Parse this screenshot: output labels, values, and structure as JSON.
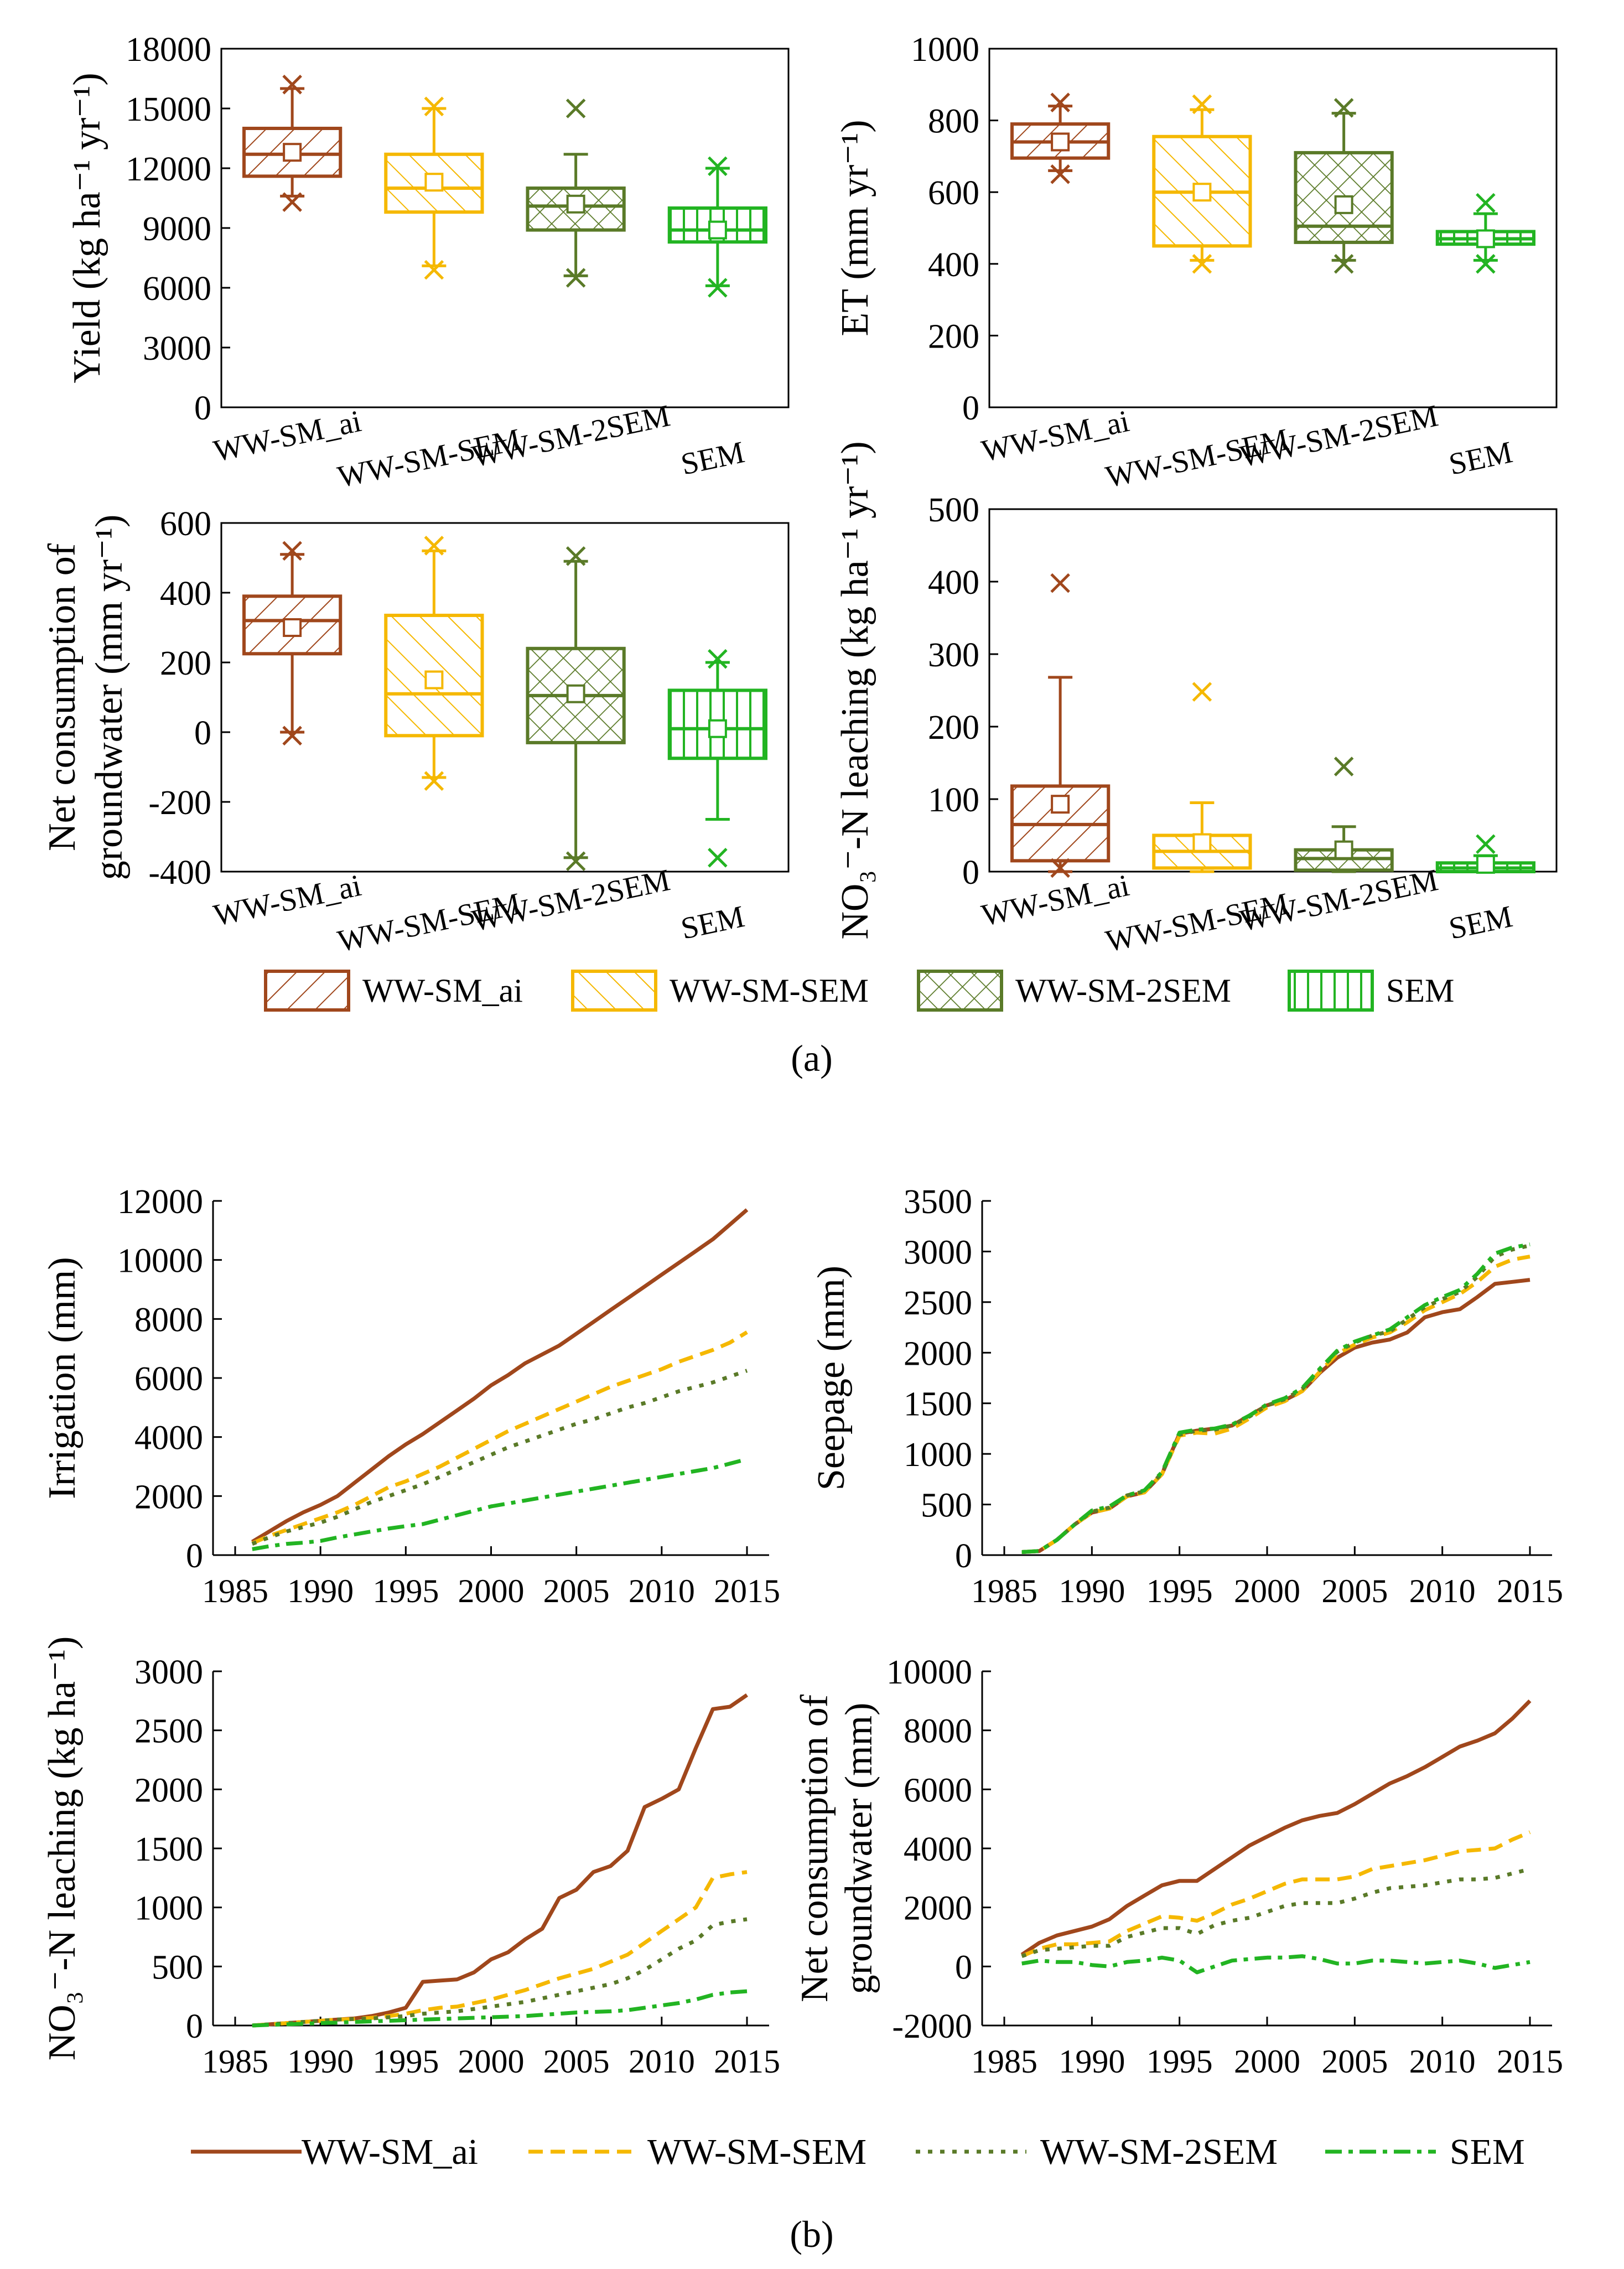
{
  "colors": {
    "ai": "#A0471C",
    "sem1": "#F5B800",
    "sem2": "#5A7A28",
    "sem": "#22B422"
  },
  "box_legend": [
    {
      "name": "WW-SM_ai",
      "color": "#A0471C",
      "pattern": "pat-fdiag"
    },
    {
      "name": "WW-SM-SEM",
      "color": "#F5B800",
      "pattern": "pat-bdiag"
    },
    {
      "name": "WW-SM-2SEM",
      "color": "#5A7A28",
      "pattern": "pat-cross"
    },
    {
      "name": "SEM",
      "color": "#22B422",
      "pattern": "pat-vert"
    }
  ],
  "line_legend": [
    {
      "name": "WW-SM_ai",
      "color": "#A0471C",
      "dash": "solid"
    },
    {
      "name": "WW-SM-SEM",
      "color": "#F5B800",
      "dash": "dashed"
    },
    {
      "name": "WW-SM-2SEM",
      "color": "#5A7A28",
      "dash": "dotted"
    },
    {
      "name": "SEM",
      "color": "#22B422",
      "dashdot": true
    }
  ],
  "panel_labels": {
    "a": "(a)",
    "b": "(b)"
  },
  "chart_data": [
    {
      "id": "yield",
      "type": "box",
      "ylabel": "Yield (kg ha⁻¹ yr⁻¹)",
      "ylim": [
        0,
        18000
      ],
      "yticks": [
        0,
        3000,
        6000,
        9000,
        12000,
        15000,
        18000
      ],
      "categories": [
        "WW-SM_ai",
        "WW-SM-SEM",
        "WW-SM-2SEM",
        "SEM"
      ],
      "boxes": [
        {
          "q1": 11600,
          "median": 12700,
          "q3": 14000,
          "mean": 12800,
          "wlow": 10600,
          "whigh": 16000,
          "outliers": [
            10300,
            16200
          ]
        },
        {
          "q1": 9800,
          "median": 11000,
          "q3": 12700,
          "mean": 11300,
          "wlow": 7100,
          "whigh": 15000,
          "outliers": [
            6900,
            15100
          ]
        },
        {
          "q1": 8900,
          "median": 10100,
          "q3": 11000,
          "mean": 10200,
          "wlow": 6600,
          "whigh": 12700,
          "outliers": [
            6500,
            15000
          ]
        },
        {
          "q1": 8300,
          "median": 8900,
          "q3": 10000,
          "mean": 8900,
          "wlow": 6100,
          "whigh": 12000,
          "outliers": [
            6000,
            12100
          ]
        }
      ]
    },
    {
      "id": "et",
      "type": "box",
      "ylabel": "ET (mm yr⁻¹)",
      "ylim": [
        0,
        1000
      ],
      "yticks": [
        0,
        200,
        400,
        600,
        800,
        1000
      ],
      "categories": [
        "WW-SM_ai",
        "WW-SM-SEM",
        "WW-SM-2SEM",
        "SEM"
      ],
      "boxes": [
        {
          "q1": 695,
          "median": 740,
          "q3": 790,
          "mean": 740,
          "wlow": 660,
          "whigh": 840,
          "outliers": [
            650,
            850
          ]
        },
        {
          "q1": 450,
          "median": 600,
          "q3": 755,
          "mean": 600,
          "wlow": 410,
          "whigh": 830,
          "outliers": [
            400,
            845
          ]
        },
        {
          "q1": 460,
          "median": 505,
          "q3": 710,
          "mean": 565,
          "wlow": 410,
          "whigh": 820,
          "outliers": [
            400,
            835
          ]
        },
        {
          "q1": 455,
          "median": 470,
          "q3": 490,
          "mean": 470,
          "wlow": 410,
          "whigh": 540,
          "outliers": [
            400,
            570
          ]
        }
      ]
    },
    {
      "id": "netgw",
      "type": "box",
      "ylabel": "Net consumption of groundwater (mm yr⁻¹)",
      "ylim": [
        -400,
        600
      ],
      "yticks": [
        -400,
        -200,
        0,
        200,
        400,
        600
      ],
      "categories": [
        "WW-SM_ai",
        "WW-SM-SEM",
        "WW-SM-2SEM",
        "SEM"
      ],
      "boxes": [
        {
          "q1": 225,
          "median": 320,
          "q3": 390,
          "mean": 300,
          "wlow": 0,
          "whigh": 510,
          "outliers": [
            -10,
            520
          ]
        },
        {
          "q1": -10,
          "median": 110,
          "q3": 335,
          "mean": 150,
          "wlow": -130,
          "whigh": 520,
          "outliers": [
            -140,
            535
          ]
        },
        {
          "q1": -30,
          "median": 105,
          "q3": 240,
          "mean": 110,
          "wlow": -360,
          "whigh": 490,
          "outliers": [
            -370,
            505
          ]
        },
        {
          "q1": -75,
          "median": 10,
          "q3": 120,
          "mean": 10,
          "wlow": -250,
          "whigh": 200,
          "outliers": [
            -360,
            210
          ]
        }
      ]
    },
    {
      "id": "no3",
      "type": "box",
      "ylabel": "NO₃⁻-N leaching (kg ha⁻¹ yr⁻¹)",
      "ylim": [
        0,
        500
      ],
      "yticks": [
        0,
        100,
        200,
        300,
        400,
        500
      ],
      "categories": [
        "WW-SM_ai",
        "WW-SM-SEM",
        "WW-SM-2SEM",
        "SEM"
      ],
      "boxes": [
        {
          "q1": 15,
          "median": 65,
          "q3": 118,
          "mean": 93,
          "wlow": 0,
          "whigh": 268,
          "outliers": [
            5,
            398
          ]
        },
        {
          "q1": 5,
          "median": 28,
          "q3": 50,
          "mean": 40,
          "wlow": 0,
          "whigh": 95,
          "outliers": [
            248
          ]
        },
        {
          "q1": 2,
          "median": 18,
          "q3": 30,
          "mean": 30,
          "wlow": 0,
          "whigh": 62,
          "outliers": [
            145
          ]
        },
        {
          "q1": 0,
          "median": 5,
          "q3": 12,
          "mean": 10,
          "wlow": 0,
          "whigh": 22,
          "outliers": [
            38
          ]
        }
      ]
    },
    {
      "id": "irr",
      "type": "line",
      "ylabel": "Irrigation (mm)",
      "xlim": [
        1985,
        2015
      ],
      "xticks": [
        1985,
        1990,
        1995,
        2000,
        2005,
        2010,
        2015
      ],
      "ylim": [
        0,
        12000
      ],
      "yticks": [
        0,
        2000,
        4000,
        6000,
        8000,
        10000,
        12000
      ],
      "x": [
        1986,
        1987,
        1988,
        1989,
        1990,
        1991,
        1992,
        1993,
        1994,
        1995,
        1996,
        1997,
        1998,
        1999,
        2000,
        2001,
        2002,
        2003,
        2004,
        2005,
        2006,
        2007,
        2008,
        2009,
        2010,
        2011,
        2012,
        2013,
        2014,
        2015
      ],
      "series": [
        {
          "name": "WW-SM_ai",
          "values": [
            450,
            800,
            1150,
            1450,
            1700,
            2000,
            2450,
            2900,
            3350,
            3750,
            4100,
            4500,
            4900,
            5300,
            5750,
            6100,
            6500,
            6800,
            7100,
            7500,
            7900,
            8300,
            8700,
            9100,
            9500,
            9900,
            10300,
            10700,
            11200,
            11700
          ]
        },
        {
          "name": "WW-SM-SEM",
          "values": [
            400,
            650,
            850,
            1050,
            1250,
            1450,
            1700,
            2000,
            2300,
            2500,
            2750,
            3000,
            3300,
            3600,
            3900,
            4200,
            4450,
            4700,
            4950,
            5200,
            5450,
            5700,
            5900,
            6100,
            6300,
            6550,
            6750,
            6950,
            7200,
            7550
          ]
        },
        {
          "name": "WW-SM-2SEM",
          "values": [
            380,
            600,
            800,
            950,
            1100,
            1300,
            1550,
            1800,
            2000,
            2200,
            2400,
            2650,
            2900,
            3150,
            3400,
            3650,
            3850,
            4050,
            4250,
            4450,
            4600,
            4800,
            5000,
            5150,
            5350,
            5550,
            5700,
            5850,
            6050,
            6250
          ]
        },
        {
          "name": "SEM",
          "values": [
            200,
            300,
            380,
            420,
            480,
            600,
            700,
            800,
            900,
            980,
            1050,
            1200,
            1350,
            1500,
            1650,
            1750,
            1850,
            1950,
            2050,
            2150,
            2250,
            2350,
            2450,
            2550,
            2650,
            2750,
            2850,
            2950,
            3100,
            3250
          ]
        }
      ]
    },
    {
      "id": "seep",
      "type": "line",
      "ylabel": "Seepage (mm)",
      "xlim": [
        1985,
        2015
      ],
      "xticks": [
        1985,
        1990,
        1995,
        2000,
        2005,
        2010,
        2015
      ],
      "ylim": [
        0,
        3500
      ],
      "yticks": [
        0,
        500,
        1000,
        1500,
        2000,
        2500,
        3000,
        3500
      ],
      "x": [
        1986,
        1987,
        1988,
        1989,
        1990,
        1991,
        1992,
        1993,
        1994,
        1995,
        1996,
        1997,
        1998,
        1999,
        2000,
        2001,
        2002,
        2003,
        2004,
        2005,
        2006,
        2007,
        2008,
        2009,
        2010,
        2011,
        2012,
        2013,
        2014,
        2015
      ],
      "series": [
        {
          "name": "WW-SM_ai",
          "values": [
            30,
            40,
            150,
            300,
            420,
            460,
            580,
            620,
            800,
            1200,
            1230,
            1250,
            1280,
            1380,
            1480,
            1530,
            1620,
            1800,
            1950,
            2050,
            2100,
            2130,
            2200,
            2350,
            2400,
            2430,
            2550,
            2680,
            2700,
            2720
          ]
        },
        {
          "name": "WW-SM-SEM",
          "values": [
            30,
            40,
            150,
            300,
            420,
            460,
            580,
            620,
            800,
            1180,
            1210,
            1200,
            1250,
            1350,
            1460,
            1520,
            1620,
            1810,
            1990,
            2080,
            2150,
            2200,
            2300,
            2420,
            2500,
            2580,
            2700,
            2850,
            2920,
            2950
          ]
        },
        {
          "name": "WW-SM-2SEM",
          "values": [
            30,
            40,
            150,
            300,
            430,
            470,
            590,
            630,
            810,
            1190,
            1230,
            1240,
            1280,
            1370,
            1480,
            1540,
            1640,
            1830,
            2010,
            2100,
            2170,
            2210,
            2330,
            2450,
            2530,
            2600,
            2750,
            2950,
            3020,
            3060
          ]
        },
        {
          "name": "SEM",
          "values": [
            30,
            40,
            150,
            300,
            440,
            480,
            590,
            640,
            820,
            1210,
            1240,
            1250,
            1290,
            1380,
            1490,
            1550,
            1650,
            1840,
            2020,
            2110,
            2170,
            2230,
            2350,
            2470,
            2550,
            2620,
            2780,
            2980,
            3040,
            3070
          ]
        }
      ]
    },
    {
      "id": "no3cum",
      "type": "line",
      "ylabel": "NO₃⁻-N leaching (kg ha⁻¹)",
      "xlim": [
        1985,
        2015
      ],
      "xticks": [
        1985,
        1990,
        1995,
        2000,
        2005,
        2010,
        2015
      ],
      "ylim": [
        0,
        3000
      ],
      "yticks": [
        0,
        500,
        1000,
        1500,
        2000,
        2500,
        3000
      ],
      "x": [
        1986,
        1987,
        1988,
        1989,
        1990,
        1991,
        1992,
        1993,
        1994,
        1995,
        1996,
        1997,
        1998,
        1999,
        2000,
        2001,
        2002,
        2003,
        2004,
        2005,
        2006,
        2007,
        2008,
        2009,
        2010,
        2011,
        2012,
        2013,
        2014,
        2015
      ],
      "series": [
        {
          "name": "WW-SM_ai",
          "values": [
            0,
            10,
            20,
            30,
            40,
            50,
            60,
            80,
            110,
            150,
            370,
            380,
            390,
            450,
            560,
            620,
            730,
            820,
            1080,
            1150,
            1300,
            1350,
            1480,
            1850,
            1920,
            2000,
            2350,
            2680,
            2700,
            2800
          ]
        },
        {
          "name": "WW-SM-SEM",
          "values": [
            0,
            10,
            20,
            30,
            40,
            50,
            55,
            65,
            80,
            100,
            130,
            150,
            160,
            190,
            220,
            260,
            300,
            350,
            400,
            440,
            480,
            540,
            600,
            700,
            800,
            900,
            1000,
            1250,
            1280,
            1300
          ]
        },
        {
          "name": "WW-SM-2SEM",
          "values": [
            0,
            10,
            20,
            30,
            40,
            50,
            55,
            60,
            70,
            80,
            100,
            110,
            120,
            140,
            160,
            180,
            200,
            230,
            260,
            290,
            320,
            350,
            400,
            470,
            560,
            650,
            720,
            850,
            880,
            900
          ]
        },
        {
          "name": "SEM",
          "values": [
            0,
            5,
            10,
            15,
            20,
            25,
            30,
            35,
            40,
            45,
            50,
            55,
            60,
            65,
            70,
            75,
            80,
            90,
            100,
            110,
            115,
            120,
            130,
            150,
            170,
            190,
            220,
            260,
            280,
            290
          ]
        }
      ]
    },
    {
      "id": "netgwcum",
      "type": "line",
      "ylabel": "Net consumption of groundwater (mm)",
      "xlim": [
        1985,
        2015
      ],
      "xticks": [
        1985,
        1990,
        1995,
        2000,
        2005,
        2010,
        2015
      ],
      "ylim": [
        -2000,
        10000
      ],
      "yticks": [
        -2000,
        0,
        2000,
        4000,
        6000,
        8000,
        10000
      ],
      "x": [
        1986,
        1987,
        1988,
        1989,
        1990,
        1991,
        1992,
        1993,
        1994,
        1995,
        1996,
        1997,
        1998,
        1999,
        2000,
        2001,
        2002,
        2003,
        2004,
        2005,
        2006,
        2007,
        2008,
        2009,
        2010,
        2011,
        2012,
        2013,
        2014,
        2015
      ],
      "series": [
        {
          "name": "WW-SM_ai",
          "values": [
            400,
            800,
            1050,
            1200,
            1350,
            1600,
            2050,
            2400,
            2750,
            2900,
            2900,
            3300,
            3700,
            4100,
            4400,
            4700,
            4950,
            5100,
            5200,
            5500,
            5850,
            6200,
            6450,
            6750,
            7100,
            7450,
            7650,
            7900,
            8400,
            9000
          ]
        },
        {
          "name": "WW-SM-SEM",
          "values": [
            350,
            600,
            750,
            750,
            800,
            850,
            1200,
            1450,
            1700,
            1650,
            1550,
            1800,
            2100,
            2300,
            2550,
            2800,
            2950,
            2950,
            2950,
            3050,
            3300,
            3400,
            3500,
            3600,
            3750,
            3900,
            3950,
            4000,
            4300,
            4550
          ]
        },
        {
          "name": "WW-SM-2SEM",
          "values": [
            350,
            550,
            600,
            650,
            700,
            700,
            1000,
            1150,
            1300,
            1300,
            1100,
            1400,
            1550,
            1650,
            1850,
            2050,
            2150,
            2150,
            2150,
            2300,
            2500,
            2650,
            2700,
            2750,
            2850,
            2950,
            2950,
            3000,
            3150,
            3300
          ]
        },
        {
          "name": "SEM",
          "values": [
            100,
            200,
            150,
            150,
            50,
            0,
            150,
            200,
            300,
            200,
            -200,
            0,
            200,
            250,
            300,
            300,
            350,
            250,
            100,
            100,
            200,
            200,
            150,
            100,
            150,
            200,
            100,
            -50,
            50,
            150
          ]
        }
      ]
    }
  ]
}
